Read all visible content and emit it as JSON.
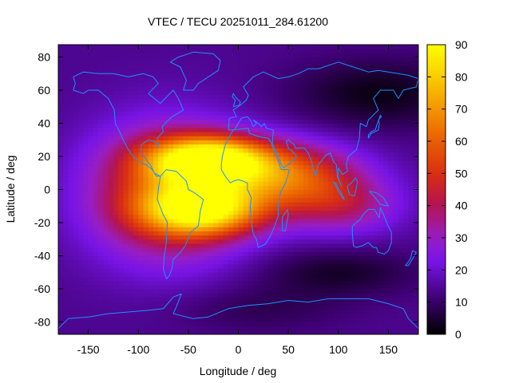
{
  "chart_data": {
    "type": "heatmap",
    "title": "VTEC / TECU 20251011_284.61200",
    "xlabel": "Longitude / deg",
    "ylabel": "Latitude / deg",
    "xlim": [
      -180,
      180
    ],
    "ylim": [
      -87.5,
      87.5
    ],
    "x_ticks": [
      -150,
      -100,
      -50,
      0,
      50,
      100,
      150
    ],
    "y_ticks": [
      -80,
      -60,
      -40,
      -20,
      0,
      20,
      40,
      60,
      80
    ],
    "colorbar": {
      "range": [
        0,
        90
      ],
      "ticks": [
        0,
        10,
        20,
        30,
        40,
        50,
        60,
        70,
        80,
        90
      ]
    },
    "grid_resolution": {
      "lon_step": 5,
      "lat_step": 2.5
    },
    "field_model": {
      "background": 14,
      "peaks": [
        {
          "lon": -30,
          "lat": 18,
          "amp": 70,
          "sigma_lon": 42,
          "sigma_lat": 10
        },
        {
          "lon": -35,
          "lat": -12,
          "amp": 58,
          "sigma_lon": 42,
          "sigma_lat": 11
        },
        {
          "lon": -70,
          "lat": -2,
          "amp": 40,
          "sigma_lon": 55,
          "sigma_lat": 28
        },
        {
          "lon": 50,
          "lat": 8,
          "amp": 42,
          "sigma_lon": 50,
          "sigma_lat": 14
        },
        {
          "lon": 105,
          "lat": -10,
          "amp": 20,
          "sigma_lon": 40,
          "sigma_lat": 12
        }
      ],
      "dips": [
        {
          "lon": 140,
          "lat": 58,
          "amp": 12,
          "sigma_lon": 60,
          "sigma_lat": 15
        },
        {
          "lon": 100,
          "lat": -50,
          "amp": 10,
          "sigma_lon": 55,
          "sigma_lat": 10
        },
        {
          "lon": 20,
          "lat": -72,
          "amp": 6,
          "sigma_lon": 60,
          "sigma_lat": 10
        }
      ]
    },
    "coastlines": [
      {
        "name": "north-america",
        "points": [
          [
            -165,
            68
          ],
          [
            -155,
            71
          ],
          [
            -140,
            70
          ],
          [
            -125,
            70
          ],
          [
            -110,
            68
          ],
          [
            -95,
            70
          ],
          [
            -85,
            68
          ],
          [
            -80,
            64
          ],
          [
            -90,
            58
          ],
          [
            -82,
            54
          ],
          [
            -78,
            52
          ],
          [
            -65,
            60
          ],
          [
            -60,
            55
          ],
          [
            -55,
            48
          ],
          [
            -66,
            44
          ],
          [
            -70,
            42
          ],
          [
            -76,
            38
          ],
          [
            -75,
            35
          ],
          [
            -81,
            31
          ],
          [
            -80,
            26
          ],
          [
            -83,
            29
          ],
          [
            -90,
            30
          ],
          [
            -97,
            27
          ],
          [
            -97,
            22
          ],
          [
            -92,
            18
          ],
          [
            -88,
            15
          ],
          [
            -84,
            10
          ],
          [
            -78,
            8
          ],
          [
            -82,
            8
          ],
          [
            -86,
            12
          ],
          [
            -92,
            15
          ],
          [
            -97,
            16
          ],
          [
            -105,
            20
          ],
          [
            -110,
            24
          ],
          [
            -115,
            30
          ],
          [
            -118,
            34
          ],
          [
            -123,
            40
          ],
          [
            -124,
            48
          ],
          [
            -130,
            55
          ],
          [
            -140,
            60
          ],
          [
            -150,
            60
          ],
          [
            -155,
            58
          ],
          [
            -165,
            60
          ],
          [
            -163,
            64
          ],
          [
            -165,
            68
          ]
        ]
      },
      {
        "name": "south-america",
        "points": [
          [
            -78,
            8
          ],
          [
            -72,
            12
          ],
          [
            -62,
            11
          ],
          [
            -52,
            5
          ],
          [
            -50,
            0
          ],
          [
            -44,
            -2
          ],
          [
            -35,
            -6
          ],
          [
            -38,
            -13
          ],
          [
            -40,
            -22
          ],
          [
            -48,
            -26
          ],
          [
            -53,
            -34
          ],
          [
            -58,
            -38
          ],
          [
            -65,
            -42
          ],
          [
            -66,
            -47
          ],
          [
            -69,
            -52
          ],
          [
            -72,
            -54
          ],
          [
            -75,
            -48
          ],
          [
            -74,
            -40
          ],
          [
            -72,
            -32
          ],
          [
            -71,
            -20
          ],
          [
            -76,
            -14
          ],
          [
            -81,
            -6
          ],
          [
            -80,
            0
          ],
          [
            -78,
            8
          ]
        ]
      },
      {
        "name": "greenland",
        "points": [
          [
            -55,
            60
          ],
          [
            -45,
            60
          ],
          [
            -40,
            64
          ],
          [
            -30,
            68
          ],
          [
            -20,
            72
          ],
          [
            -18,
            78
          ],
          [
            -25,
            82
          ],
          [
            -45,
            83
          ],
          [
            -60,
            80
          ],
          [
            -68,
            77
          ],
          [
            -58,
            74
          ],
          [
            -55,
            70
          ],
          [
            -52,
            66
          ],
          [
            -55,
            60
          ]
        ]
      },
      {
        "name": "africa",
        "points": [
          [
            -17,
            15
          ],
          [
            -16,
            20
          ],
          [
            -13,
            27
          ],
          [
            -9,
            32
          ],
          [
            -5,
            36
          ],
          [
            10,
            37
          ],
          [
            11,
            34
          ],
          [
            20,
            32
          ],
          [
            30,
            31
          ],
          [
            33,
            28
          ],
          [
            38,
            20
          ],
          [
            43,
            12
          ],
          [
            51,
            12
          ],
          [
            48,
            5
          ],
          [
            42,
            -2
          ],
          [
            40,
            -10
          ],
          [
            40,
            -16
          ],
          [
            35,
            -24
          ],
          [
            32,
            -28
          ],
          [
            27,
            -33
          ],
          [
            20,
            -35
          ],
          [
            18,
            -30
          ],
          [
            15,
            -27
          ],
          [
            13,
            -20
          ],
          [
            12,
            -10
          ],
          [
            13,
            -5
          ],
          [
            9,
            0
          ],
          [
            9,
            4
          ],
          [
            5,
            5
          ],
          [
            0,
            6
          ],
          [
            -5,
            5
          ],
          [
            -8,
            4
          ],
          [
            -13,
            8
          ],
          [
            -17,
            12
          ],
          [
            -17,
            15
          ]
        ]
      },
      {
        "name": "eurasia",
        "points": [
          [
            -10,
            36
          ],
          [
            -9,
            43
          ],
          [
            -2,
            44
          ],
          [
            -5,
            48
          ],
          [
            2,
            51
          ],
          [
            8,
            54
          ],
          [
            10,
            57
          ],
          [
            5,
            62
          ],
          [
            15,
            68
          ],
          [
            25,
            71
          ],
          [
            40,
            67
          ],
          [
            50,
            68
          ],
          [
            60,
            70
          ],
          [
            70,
            73
          ],
          [
            80,
            73
          ],
          [
            100,
            77
          ],
          [
            115,
            74
          ],
          [
            130,
            71
          ],
          [
            140,
            72
          ],
          [
            160,
            70
          ],
          [
            170,
            69
          ],
          [
            180,
            67
          ],
          [
            178,
            62
          ],
          [
            165,
            60
          ],
          [
            160,
            55
          ],
          [
            155,
            60
          ],
          [
            142,
            60
          ],
          [
            135,
            55
          ],
          [
            140,
            48
          ],
          [
            130,
            42
          ],
          [
            128,
            38
          ],
          [
            122,
            40
          ],
          [
            121,
            31
          ],
          [
            118,
            24
          ],
          [
            110,
            20
          ],
          [
            108,
            15
          ],
          [
            109,
            11
          ],
          [
            104,
            9
          ],
          [
            100,
            13
          ],
          [
            100,
            7
          ],
          [
            103,
            2
          ],
          [
            99,
            8
          ],
          [
            98,
            15
          ],
          [
            95,
            17
          ],
          [
            92,
            22
          ],
          [
            88,
            21
          ],
          [
            80,
            15
          ],
          [
            77,
            8
          ],
          [
            73,
            17
          ],
          [
            70,
            22
          ],
          [
            66,
            25
          ],
          [
            57,
            25
          ],
          [
            56,
            27
          ],
          [
            50,
            30
          ],
          [
            48,
            29
          ],
          [
            50,
            25
          ],
          [
            56,
            22
          ],
          [
            58,
            20
          ],
          [
            52,
            16
          ],
          [
            45,
            13
          ],
          [
            43,
            15
          ],
          [
            38,
            22
          ],
          [
            34,
            28
          ],
          [
            35,
            36
          ],
          [
            28,
            37
          ],
          [
            26,
            40
          ],
          [
            23,
            38
          ],
          [
            20,
            40
          ],
          [
            15,
            42
          ],
          [
            18,
            40
          ],
          [
            15,
            38
          ],
          [
            12,
            42
          ],
          [
            9,
            44
          ],
          [
            3,
            43
          ],
          [
            -4,
            36
          ],
          [
            -10,
            36
          ]
        ]
      },
      {
        "name": "australia",
        "points": [
          [
            114,
            -22
          ],
          [
            114,
            -26
          ],
          [
            115,
            -34
          ],
          [
            118,
            -35
          ],
          [
            124,
            -34
          ],
          [
            130,
            -32
          ],
          [
            135,
            -35
          ],
          [
            138,
            -35
          ],
          [
            140,
            -38
          ],
          [
            146,
            -39
          ],
          [
            150,
            -37
          ],
          [
            153,
            -32
          ],
          [
            153,
            -26
          ],
          [
            149,
            -21
          ],
          [
            145,
            -15
          ],
          [
            142,
            -11
          ],
          [
            141,
            -17
          ],
          [
            136,
            -12
          ],
          [
            130,
            -12
          ],
          [
            125,
            -15
          ],
          [
            122,
            -18
          ],
          [
            114,
            -22
          ]
        ]
      },
      {
        "name": "britain",
        "points": [
          [
            -5,
            50
          ],
          [
            1,
            51
          ],
          [
            2,
            53
          ],
          [
            -3,
            56
          ],
          [
            -5,
            58
          ],
          [
            -6,
            56
          ],
          [
            -3,
            54
          ],
          [
            -5,
            50
          ]
        ]
      },
      {
        "name": "madagascar",
        "points": [
          [
            44,
            -25
          ],
          [
            47,
            -25
          ],
          [
            50,
            -15
          ],
          [
            49,
            -12
          ],
          [
            44,
            -17
          ],
          [
            44,
            -25
          ]
        ]
      },
      {
        "name": "japan",
        "points": [
          [
            130,
            31
          ],
          [
            133,
            34
          ],
          [
            137,
            35
          ],
          [
            140,
            36
          ],
          [
            141,
            40
          ],
          [
            140,
            42
          ],
          [
            143,
            44
          ],
          [
            142,
            45
          ],
          [
            141,
            43
          ],
          [
            139,
            40
          ],
          [
            137,
            36
          ],
          [
            133,
            35
          ],
          [
            130,
            33
          ],
          [
            130,
            31
          ]
        ]
      },
      {
        "name": "borneo",
        "points": [
          [
            109,
            2
          ],
          [
            113,
            4
          ],
          [
            117,
            7
          ],
          [
            119,
            5
          ],
          [
            118,
            1
          ],
          [
            116,
            -4
          ],
          [
            111,
            -3
          ],
          [
            109,
            2
          ]
        ]
      },
      {
        "name": "sumatra",
        "points": [
          [
            95,
            5
          ],
          [
            98,
            3
          ],
          [
            106,
            -6
          ],
          [
            104,
            -5
          ],
          [
            100,
            -1
          ],
          [
            95,
            5
          ]
        ]
      },
      {
        "name": "new-guinea",
        "points": [
          [
            131,
            -1
          ],
          [
            138,
            -2
          ],
          [
            145,
            -5
          ],
          [
            150,
            -10
          ],
          [
            142,
            -9
          ],
          [
            137,
            -5
          ],
          [
            131,
            -1
          ]
        ]
      },
      {
        "name": "new-zealand",
        "points": [
          [
            167,
            -46
          ],
          [
            172,
            -42
          ],
          [
            174,
            -37
          ],
          [
            178,
            -38
          ],
          [
            174,
            -42
          ],
          [
            170,
            -46
          ],
          [
            167,
            -46
          ]
        ]
      },
      {
        "name": "antarctica",
        "points": [
          [
            -180,
            -84
          ],
          [
            -170,
            -78
          ],
          [
            -150,
            -77
          ],
          [
            -130,
            -75
          ],
          [
            -110,
            -74
          ],
          [
            -90,
            -73
          ],
          [
            -75,
            -72
          ],
          [
            -65,
            -65
          ],
          [
            -57,
            -63
          ],
          [
            -60,
            -68
          ],
          [
            -65,
            -75
          ],
          [
            -45,
            -78
          ],
          [
            -30,
            -77
          ],
          [
            -10,
            -72
          ],
          [
            10,
            -70
          ],
          [
            30,
            -69
          ],
          [
            50,
            -67
          ],
          [
            70,
            -68
          ],
          [
            90,
            -66
          ],
          [
            110,
            -66
          ],
          [
            130,
            -66
          ],
          [
            150,
            -69
          ],
          [
            165,
            -72
          ],
          [
            170,
            -78
          ],
          [
            180,
            -84
          ]
        ]
      }
    ]
  }
}
